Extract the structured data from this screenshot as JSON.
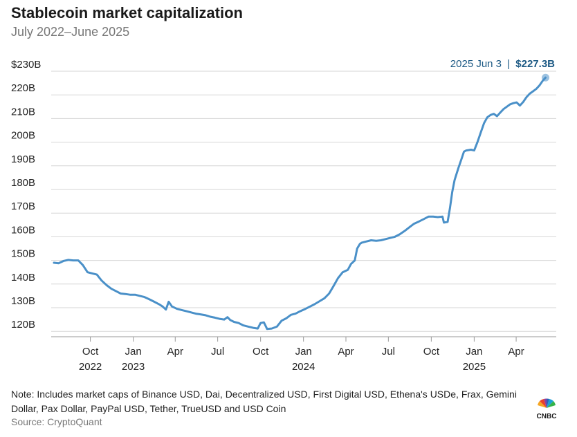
{
  "header": {
    "title": "Stablecoin market capitalization",
    "subtitle": "July 2022–June 2025"
  },
  "footer": {
    "note": "Note: Includes market caps of Binance USD, Dai, Decentralized USD, First Digital USD, Ethena's USDe, Frax, Gemini Dollar, Pax Dollar, PayPal USD, Tether, TrueUSD and USD Coin",
    "source": "Source: CryptoQuant",
    "logo_text": "CNBC"
  },
  "colors": {
    "line": "#4a90c8",
    "grid": "#d6d6d6",
    "annotation": "#1d5a85",
    "baseline": "#999999"
  },
  "chart_data": {
    "type": "line",
    "title": "Stablecoin market capitalization",
    "subtitle": "July 2022–June 2025",
    "xlabel": "",
    "ylabel": "",
    "ylim": [
      118,
      230
    ],
    "xlim": [
      "2022-07-15",
      "2025-06-20"
    ],
    "grid": true,
    "y_ticks": [
      {
        "value": 230,
        "label": "$230B"
      },
      {
        "value": 220,
        "label": "220B"
      },
      {
        "value": 210,
        "label": "210B"
      },
      {
        "value": 200,
        "label": "200B"
      },
      {
        "value": 190,
        "label": "190B"
      },
      {
        "value": 180,
        "label": "180B"
      },
      {
        "value": 170,
        "label": "170B"
      },
      {
        "value": 160,
        "label": "160B"
      },
      {
        "value": 150,
        "label": "150B"
      },
      {
        "value": 140,
        "label": "140B"
      },
      {
        "value": 130,
        "label": "130B"
      },
      {
        "value": 120,
        "label": "120B"
      }
    ],
    "x_ticks": [
      {
        "date": "2022-10-01",
        "label": "Oct",
        "year": "2022"
      },
      {
        "date": "2023-01-01",
        "label": "Jan",
        "year": "2023"
      },
      {
        "date": "2023-04-01",
        "label": "Apr",
        "year": ""
      },
      {
        "date": "2023-07-01",
        "label": "Jul",
        "year": ""
      },
      {
        "date": "2023-10-01",
        "label": "Oct",
        "year": ""
      },
      {
        "date": "2024-01-01",
        "label": "Jan",
        "year": "2024"
      },
      {
        "date": "2024-04-01",
        "label": "Apr",
        "year": ""
      },
      {
        "date": "2024-07-01",
        "label": "Jul",
        "year": ""
      },
      {
        "date": "2024-10-01",
        "label": "Oct",
        "year": ""
      },
      {
        "date": "2025-01-01",
        "label": "Jan",
        "year": "2025"
      },
      {
        "date": "2025-04-01",
        "label": "Apr",
        "year": ""
      }
    ],
    "series": [
      {
        "points": [
          [
            "2022-07-15",
            149.0
          ],
          [
            "2022-07-25",
            148.8
          ],
          [
            "2022-08-05",
            149.8
          ],
          [
            "2022-08-15",
            150.2
          ],
          [
            "2022-08-25",
            150.0
          ],
          [
            "2022-09-05",
            150.0
          ],
          [
            "2022-09-15",
            148.0
          ],
          [
            "2022-09-25",
            145.0
          ],
          [
            "2022-10-05",
            144.5
          ],
          [
            "2022-10-15",
            144.0
          ],
          [
            "2022-10-25",
            141.5
          ],
          [
            "2022-11-05",
            139.5
          ],
          [
            "2022-11-15",
            138.0
          ],
          [
            "2022-11-25",
            137.0
          ],
          [
            "2022-12-05",
            136.0
          ],
          [
            "2022-12-15",
            135.8
          ],
          [
            "2022-12-25",
            135.5
          ],
          [
            "2023-01-05",
            135.5
          ],
          [
            "2023-01-15",
            135.0
          ],
          [
            "2023-01-25",
            134.5
          ],
          [
            "2023-02-05",
            133.5
          ],
          [
            "2023-02-15",
            132.5
          ],
          [
            "2023-02-25",
            131.5
          ],
          [
            "2023-03-05",
            130.5
          ],
          [
            "2023-03-12",
            129.2
          ],
          [
            "2023-03-18",
            132.5
          ],
          [
            "2023-03-25",
            130.5
          ],
          [
            "2023-04-05",
            129.5
          ],
          [
            "2023-04-15",
            129.0
          ],
          [
            "2023-04-25",
            128.5
          ],
          [
            "2023-05-05",
            128.0
          ],
          [
            "2023-05-15",
            127.5
          ],
          [
            "2023-05-25",
            127.2
          ],
          [
            "2023-06-05",
            126.8
          ],
          [
            "2023-06-15",
            126.2
          ],
          [
            "2023-06-25",
            125.8
          ],
          [
            "2023-07-05",
            125.3
          ],
          [
            "2023-07-15",
            125.0
          ],
          [
            "2023-07-22",
            126.0
          ],
          [
            "2023-07-28",
            124.8
          ],
          [
            "2023-08-05",
            124.0
          ],
          [
            "2023-08-15",
            123.5
          ],
          [
            "2023-08-25",
            122.5
          ],
          [
            "2023-09-05",
            122.0
          ],
          [
            "2023-09-15",
            121.5
          ],
          [
            "2023-09-25",
            121.2
          ],
          [
            "2023-10-01",
            123.5
          ],
          [
            "2023-10-08",
            123.8
          ],
          [
            "2023-10-15",
            121.0
          ],
          [
            "2023-10-25",
            121.2
          ],
          [
            "2023-11-05",
            122.0
          ],
          [
            "2023-11-15",
            124.5
          ],
          [
            "2023-11-25",
            125.5
          ],
          [
            "2023-12-05",
            127.0
          ],
          [
            "2023-12-15",
            127.5
          ],
          [
            "2023-12-25",
            128.5
          ],
          [
            "2024-01-05",
            129.5
          ],
          [
            "2024-01-15",
            130.5
          ],
          [
            "2024-01-25",
            131.5
          ],
          [
            "2024-02-05",
            132.8
          ],
          [
            "2024-02-15",
            134.0
          ],
          [
            "2024-02-25",
            136.0
          ],
          [
            "2024-03-05",
            139.0
          ],
          [
            "2024-03-15",
            142.5
          ],
          [
            "2024-03-25",
            145.0
          ],
          [
            "2024-04-05",
            146.0
          ],
          [
            "2024-04-12",
            148.5
          ],
          [
            "2024-04-20",
            150.0
          ],
          [
            "2024-04-25",
            155.0
          ],
          [
            "2024-05-01",
            157.0
          ],
          [
            "2024-05-05",
            157.5
          ],
          [
            "2024-05-15",
            158.0
          ],
          [
            "2024-05-25",
            158.5
          ],
          [
            "2024-06-05",
            158.3
          ],
          [
            "2024-06-15",
            158.5
          ],
          [
            "2024-06-25",
            159.0
          ],
          [
            "2024-07-05",
            159.5
          ],
          [
            "2024-07-15",
            160.0
          ],
          [
            "2024-07-25",
            161.0
          ],
          [
            "2024-08-05",
            162.5
          ],
          [
            "2024-08-15",
            164.0
          ],
          [
            "2024-08-25",
            165.5
          ],
          [
            "2024-09-05",
            166.5
          ],
          [
            "2024-09-15",
            167.5
          ],
          [
            "2024-09-25",
            168.5
          ],
          [
            "2024-10-05",
            168.5
          ],
          [
            "2024-10-15",
            168.3
          ],
          [
            "2024-10-25",
            168.5
          ],
          [
            "2024-10-28",
            166.0
          ],
          [
            "2024-11-05",
            166.3
          ],
          [
            "2024-11-10",
            172.0
          ],
          [
            "2024-11-15",
            179.0
          ],
          [
            "2024-11-20",
            184.0
          ],
          [
            "2024-11-28",
            189.0
          ],
          [
            "2024-12-05",
            193.0
          ],
          [
            "2024-12-10",
            196.0
          ],
          [
            "2024-12-15",
            196.5
          ],
          [
            "2024-12-25",
            196.8
          ],
          [
            "2025-01-01",
            196.5
          ],
          [
            "2025-01-08",
            200.0
          ],
          [
            "2025-01-15",
            204.0
          ],
          [
            "2025-01-22",
            208.0
          ],
          [
            "2025-01-29",
            210.5
          ],
          [
            "2025-02-05",
            211.5
          ],
          [
            "2025-02-12",
            212.0
          ],
          [
            "2025-02-19",
            211.0
          ],
          [
            "2025-02-26",
            212.5
          ],
          [
            "2025-03-05",
            214.0
          ],
          [
            "2025-03-12",
            215.0
          ],
          [
            "2025-03-19",
            216.0
          ],
          [
            "2025-03-26",
            216.5
          ],
          [
            "2025-04-02",
            216.8
          ],
          [
            "2025-04-09",
            215.5
          ],
          [
            "2025-04-16",
            217.0
          ],
          [
            "2025-04-23",
            219.0
          ],
          [
            "2025-04-30",
            220.5
          ],
          [
            "2025-05-07",
            221.5
          ],
          [
            "2025-05-14",
            222.5
          ],
          [
            "2025-05-21",
            224.0
          ],
          [
            "2025-05-28",
            226.0
          ],
          [
            "2025-06-03",
            227.3
          ]
        ]
      }
    ],
    "annotation": {
      "date": "2025-06-03",
      "value": 227.3,
      "date_label": "2025 Jun 3",
      "separator": "|",
      "value_label": "$227.3B"
    }
  }
}
